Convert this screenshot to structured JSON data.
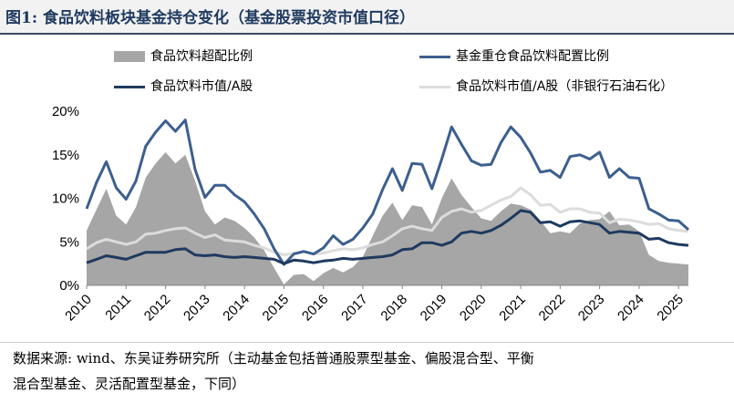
{
  "figure": {
    "title": "图1:  食品饮料板块基金持仓变化（基金股票投资市值口径）",
    "source_line1": "数据来源:  wind、东吴证券研究所（主动基金包括普通股票型基金、偏股混合型、平衡",
    "source_line2": "混合型基金、灵活配置型基金，下同）"
  },
  "legend": {
    "over_alloc": "食品饮料超配比例",
    "fund_alloc": "基金重仓食品饮料配置比例",
    "mktcap": "食品饮料市值/A股",
    "mktcap_ex": "食品饮料市值/A股（非银行石油石化）"
  },
  "colors": {
    "over_alloc": "#a6a6a6",
    "fund_alloc": "#3d5f8f",
    "mktcap": "#1f3a5f",
    "mktcap_ex": "#dcdcdc"
  },
  "chart_data": {
    "type": "line",
    "x_ticks": [
      "2010",
      "2011",
      "2012",
      "2013",
      "2014",
      "2015",
      "2016",
      "2017",
      "2018",
      "2019",
      "2020",
      "2021",
      "2022",
      "2023",
      "2024",
      "2025"
    ],
    "y_ticks": [
      "0%",
      "5%",
      "10%",
      "15%",
      "20%"
    ],
    "ylim": [
      0,
      20
    ],
    "xlim": [
      2010,
      2025.25
    ],
    "x": [
      2010.0,
      2010.25,
      2010.5,
      2010.75,
      2011.0,
      2011.25,
      2011.5,
      2011.75,
      2012.0,
      2012.25,
      2012.5,
      2012.75,
      2013.0,
      2013.25,
      2013.5,
      2013.75,
      2014.0,
      2014.25,
      2014.5,
      2014.75,
      2015.0,
      2015.25,
      2015.5,
      2015.75,
      2016.0,
      2016.25,
      2016.5,
      2016.75,
      2017.0,
      2017.25,
      2017.5,
      2017.75,
      2018.0,
      2018.25,
      2018.5,
      2018.75,
      2019.0,
      2019.25,
      2019.5,
      2019.75,
      2020.0,
      2020.25,
      2020.5,
      2020.75,
      2021.0,
      2021.25,
      2021.5,
      2021.75,
      2022.0,
      2022.25,
      2022.5,
      2022.75,
      2023.0,
      2023.25,
      2023.5,
      2023.75,
      2024.0,
      2024.25,
      2024.5,
      2024.75,
      2025.0,
      2025.25
    ],
    "series": [
      {
        "name": "食品饮料超配比例",
        "kind": "area",
        "values": [
          6.3,
          8.7,
          11.1,
          8.0,
          7.0,
          9.0,
          12.4,
          14.0,
          15.3,
          14.0,
          15.0,
          12.0,
          8.5,
          7.0,
          7.8,
          7.4,
          6.6,
          5.5,
          4.0,
          2.0,
          0.1,
          1.2,
          1.3,
          0.5,
          1.4,
          2.0,
          1.5,
          2.1,
          3.3,
          5.7,
          8.0,
          9.5,
          7.5,
          9.2,
          9.0,
          7.0,
          10.0,
          12.3,
          10.4,
          9.0,
          7.7,
          7.4,
          8.5,
          9.4,
          9.2,
          8.7,
          7.4,
          6.0,
          6.2,
          6.0,
          7.1,
          7.5,
          7.6,
          8.5,
          6.9,
          7.0,
          6.2,
          3.5,
          2.8,
          2.6,
          2.5,
          2.4
        ]
      },
      {
        "name": "基金重仓食品饮料配置比例",
        "kind": "line",
        "values": [
          8.8,
          11.8,
          14.2,
          11.2,
          9.9,
          12.0,
          16.0,
          17.6,
          18.9,
          17.7,
          19.0,
          13.3,
          10.1,
          11.5,
          11.5,
          10.4,
          9.6,
          8.2,
          6.5,
          4.2,
          2.4,
          3.6,
          3.9,
          3.6,
          4.3,
          5.7,
          4.7,
          5.3,
          6.6,
          8.2,
          11.0,
          13.4,
          10.9,
          14.0,
          13.9,
          11.1,
          14.5,
          18.2,
          16.2,
          14.3,
          13.8,
          13.9,
          16.4,
          18.2,
          17.0,
          15.2,
          13.0,
          13.2,
          12.4,
          14.8,
          15.0,
          14.5,
          15.3,
          12.4,
          13.4,
          12.4,
          12.3,
          8.8,
          8.2,
          7.5,
          7.4,
          6.4
        ]
      },
      {
        "name": "食品饮料市值/A股",
        "kind": "line",
        "values": [
          2.6,
          3.0,
          3.4,
          3.2,
          3.0,
          3.4,
          3.8,
          3.8,
          3.8,
          4.1,
          4.2,
          3.5,
          3.4,
          3.5,
          3.3,
          3.2,
          3.3,
          3.2,
          3.1,
          3.0,
          2.5,
          2.9,
          2.8,
          2.6,
          2.8,
          2.9,
          3.1,
          3.0,
          3.1,
          3.2,
          3.3,
          3.5,
          4.1,
          4.2,
          4.9,
          4.9,
          4.6,
          5.0,
          6.0,
          6.2,
          6.0,
          6.3,
          6.9,
          7.7,
          8.6,
          8.4,
          7.2,
          7.3,
          6.8,
          7.3,
          7.4,
          7.2,
          7.0,
          6.0,
          6.2,
          6.1,
          6.0,
          5.3,
          5.4,
          4.9,
          4.7,
          4.6
        ]
      },
      {
        "name": "食品饮料市值/A股（非银行石油石化）",
        "kind": "line",
        "values": [
          4.2,
          4.9,
          5.3,
          5.0,
          4.7,
          5.0,
          5.9,
          6.0,
          6.3,
          6.5,
          6.6,
          6.0,
          5.5,
          5.8,
          5.2,
          5.1,
          5.0,
          4.6,
          4.3,
          3.8,
          3.5,
          3.7,
          3.9,
          3.6,
          3.7,
          4.0,
          4.2,
          4.1,
          4.3,
          4.7,
          5.0,
          5.7,
          6.5,
          6.8,
          6.5,
          6.3,
          7.8,
          8.5,
          8.8,
          8.4,
          8.6,
          9.2,
          9.8,
          10.2,
          11.2,
          10.4,
          9.2,
          9.3,
          8.4,
          8.8,
          8.8,
          8.4,
          8.3,
          7.2,
          7.6,
          7.5,
          7.3,
          7.0,
          7.1,
          6.5,
          6.3,
          6.2
        ]
      }
    ]
  }
}
